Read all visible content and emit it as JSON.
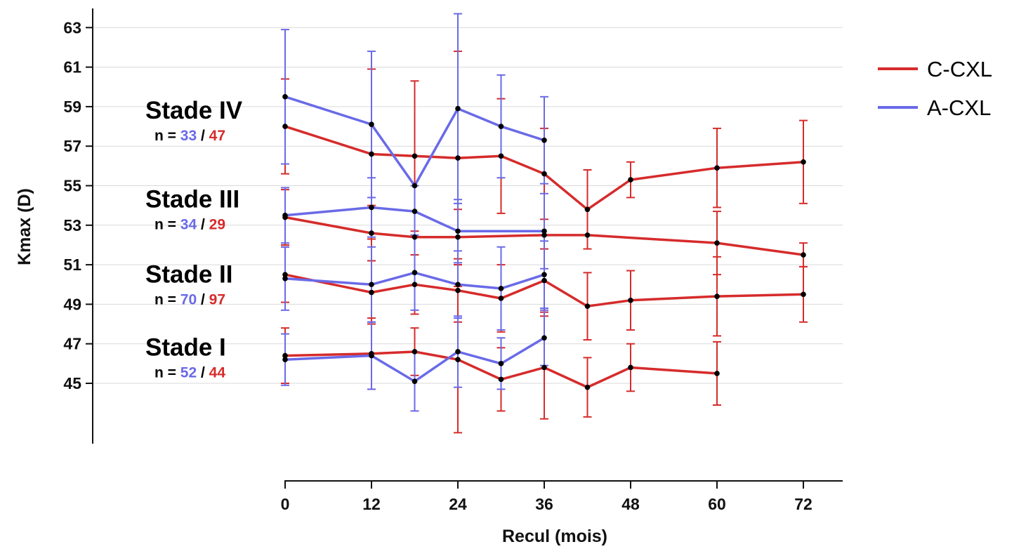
{
  "chart_data": {
    "type": "line",
    "xlabel": "Recul (mois)",
    "ylabel": "Kmax (D)",
    "x_ticks": [
      0,
      12,
      24,
      36,
      48,
      60,
      72
    ],
    "y_ticks": [
      45,
      47,
      49,
      51,
      53,
      55,
      57,
      59,
      61,
      63
    ],
    "xlim": [
      0,
      77
    ],
    "ylim": [
      41,
      64
    ],
    "grid": "horizontal",
    "legend_position": "top-right",
    "legend": [
      {
        "label": "C-CXL",
        "color": "#d62b2b"
      },
      {
        "label": "A-CXL",
        "color": "#6a6ae8"
      }
    ],
    "stage_labels": [
      {
        "name": "Stade IV",
        "n_prefix": "n = ",
        "n_a": "33",
        "sep": " / ",
        "n_c": "47",
        "y": 58.4
      },
      {
        "name": "Stade III",
        "n_prefix": "n = ",
        "n_a": "34",
        "sep": " / ",
        "n_c": "29",
        "y": 53.9
      },
      {
        "name": "Stade II",
        "n_prefix": "n = ",
        "n_a": "70",
        "sep": " / ",
        "n_c": "97",
        "y": 50.1
      },
      {
        "name": "Stade I",
        "n_prefix": "n = ",
        "n_a": "52",
        "sep": " / ",
        "n_c": "44",
        "y": 46.4
      }
    ],
    "series": [
      {
        "group": "C-CXL",
        "stage": "IV",
        "color": "#d62b2b",
        "x": [
          0,
          12,
          18,
          24,
          30,
          36,
          42,
          48,
          60,
          72
        ],
        "y": [
          58.0,
          56.6,
          56.5,
          56.4,
          56.5,
          55.6,
          53.8,
          55.3,
          55.9,
          56.2
        ],
        "err": [
          2.4,
          4.3,
          3.8,
          5.4,
          2.9,
          2.3,
          2.0,
          0.9,
          2.0,
          2.1
        ]
      },
      {
        "group": "A-CXL",
        "stage": "IV",
        "color": "#6a6ae8",
        "x": [
          0,
          12,
          18,
          24,
          30,
          36
        ],
        "y": [
          59.5,
          58.1,
          55.0,
          58.9,
          58.0,
          57.3
        ],
        "err": [
          3.4,
          3.7,
          0.0,
          4.8,
          2.6,
          2.2
        ]
      },
      {
        "group": "C-CXL",
        "stage": "III",
        "color": "#d62b2b",
        "x": [
          0,
          12,
          18,
          24,
          36,
          42,
          60,
          72
        ],
        "y": [
          53.4,
          52.6,
          52.4,
          52.4,
          52.5,
          52.5,
          52.1,
          51.5
        ],
        "err": [
          1.4,
          1.4,
          0.0,
          1.4,
          0.0,
          0.0,
          1.6,
          0.6
        ]
      },
      {
        "group": "A-CXL",
        "stage": "III",
        "color": "#6a6ae8",
        "x": [
          0,
          12,
          18,
          24,
          36
        ],
        "y": [
          53.5,
          53.9,
          53.7,
          52.7,
          52.7
        ],
        "err": [
          1.4,
          1.5,
          1.3,
          1.6,
          1.9
        ]
      },
      {
        "group": "C-CXL",
        "stage": "II",
        "color": "#d62b2b",
        "x": [
          0,
          12,
          18,
          24,
          30,
          36,
          42,
          48,
          60,
          72
        ],
        "y": [
          50.5,
          49.6,
          50.0,
          49.7,
          49.3,
          50.2,
          48.9,
          49.2,
          49.4,
          49.5
        ],
        "err": [
          1.4,
          1.6,
          1.5,
          1.6,
          1.7,
          1.6,
          1.7,
          1.5,
          2.0,
          1.4
        ]
      },
      {
        "group": "A-CXL",
        "stage": "II",
        "color": "#6a6ae8",
        "x": [
          0,
          12,
          18,
          24,
          30,
          36
        ],
        "y": [
          50.3,
          50.0,
          50.6,
          50.0,
          49.8,
          50.5
        ],
        "err": [
          1.6,
          1.9,
          1.9,
          1.7,
          2.1,
          1.7
        ]
      },
      {
        "group": "C-CXL",
        "stage": "I",
        "color": "#d62b2b",
        "x": [
          0,
          12,
          18,
          24,
          30,
          36,
          42,
          48,
          60
        ],
        "y": [
          46.4,
          46.5,
          46.6,
          46.2,
          45.2,
          45.8,
          44.8,
          45.8,
          45.5
        ],
        "err": [
          1.4,
          1.8,
          1.2,
          3.7,
          1.6,
          2.6,
          1.5,
          1.2,
          1.6
        ]
      },
      {
        "group": "A-CXL",
        "stage": "I",
        "color": "#6a6ae8",
        "x": [
          0,
          12,
          18,
          24,
          30,
          36
        ],
        "y": [
          46.2,
          46.4,
          45.1,
          46.6,
          46.0,
          47.3
        ],
        "err": [
          1.3,
          1.7,
          1.5,
          1.8,
          1.3,
          1.4
        ]
      }
    ]
  }
}
